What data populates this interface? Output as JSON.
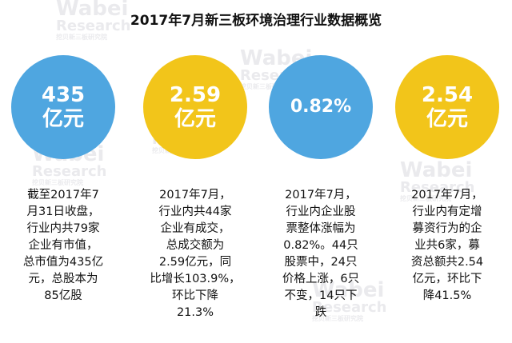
{
  "title": "2017年7月新三板环境治理行业数据概览",
  "watermark": {
    "brand": "Wabei",
    "sub": "Research",
    "cn": "挖贝新三板研究院"
  },
  "colors": {
    "blue": "#4fa6e0",
    "yellow": "#f2c51a"
  },
  "cards": [
    {
      "circle_color": "blue",
      "value_line1": "435",
      "value_line2": "亿元",
      "desc": [
        "截至2017年7",
        "月31日收盘，",
        "行业内共79家",
        "企业有市值，",
        "总市值为435亿",
        "元，总股本为",
        "85亿股"
      ]
    },
    {
      "circle_color": "yellow",
      "value_line1": "2.59",
      "value_line2": "亿元",
      "desc": [
        "2017年7月，",
        "行业内共44家",
        "企业有成交，",
        "总成交额为",
        "2.59亿元，同",
        "比增长103.9%，",
        "环比下降",
        "21.3%"
      ]
    },
    {
      "circle_color": "blue",
      "value_line1": "0.82%",
      "value_line2": "",
      "desc": [
        "2017年7月，",
        "行业内企业股",
        "票整体涨幅为",
        "0.82%。44只",
        "股票中，24只",
        "价格上涨，6只",
        "不变，14只下",
        "跌"
      ]
    },
    {
      "circle_color": "yellow",
      "value_line1": "2.54",
      "value_line2": "亿元",
      "desc": [
        "2017年7月，",
        "行业内有定增",
        "募资行为的企",
        "业共6家，募",
        "资总额共2.54",
        "亿元，环比下",
        "降41.5%"
      ]
    }
  ]
}
